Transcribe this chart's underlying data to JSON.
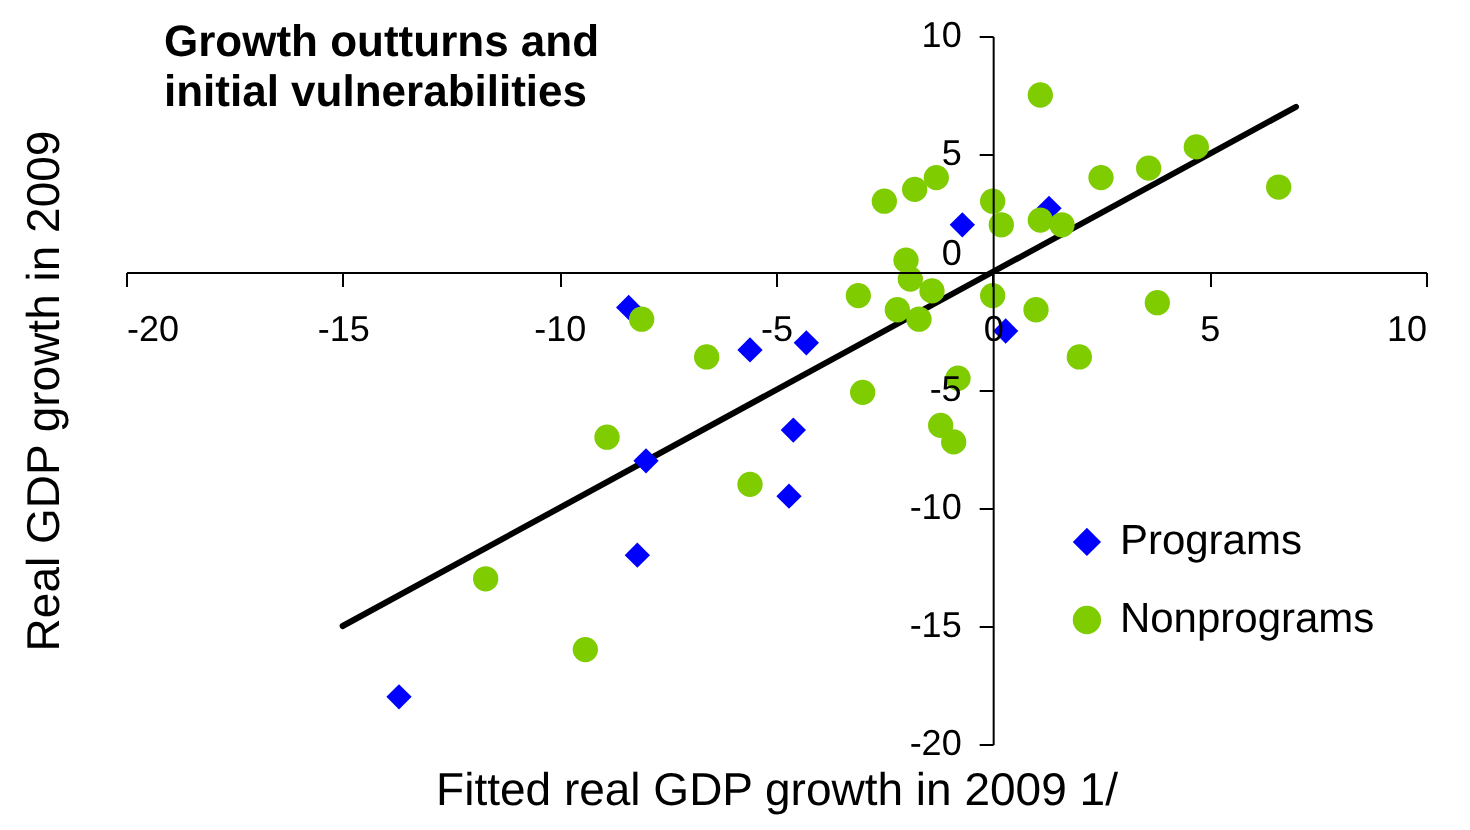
{
  "chart_data": {
    "type": "scatter",
    "title": "Growth outturns and initial vulnerabilities",
    "xlabel": "Fitted real GDP growth in 2009 1/",
    "ylabel": "Real GDP growth in 2009",
    "xlim": [
      -20,
      10
    ],
    "xticks": [
      -20,
      -15,
      -10,
      -5,
      0,
      5,
      10
    ],
    "ylim": [
      -20,
      10
    ],
    "yticks": [
      -20,
      -15,
      -10,
      -5,
      0,
      5,
      10
    ],
    "legend": "bottom right",
    "series": [
      {
        "type": "line",
        "color": "#000000",
        "x": [
          -15,
          7
        ],
        "values": [
          -15,
          7
        ]
      },
      {
        "name": "Programs",
        "color": "#0000ff",
        "marker": "diamond",
        "x": [
          -8.4,
          -5.6,
          -4.3,
          -4.6,
          -8.0,
          -4.7,
          -8.2,
          -13.7,
          -0.7,
          1.3,
          0.3
        ],
        "values": [
          -1.5,
          -3.3,
          -3.0,
          -6.7,
          -8.0,
          -9.5,
          -12.0,
          -18.0,
          2.0,
          2.7,
          -2.5
        ]
      },
      {
        "name": "Nonprograms",
        "color": "#7fcc00",
        "marker": "circle",
        "x": [
          1.1,
          4.7,
          3.6,
          2.5,
          6.6,
          -1.3,
          -1.8,
          -2.5,
          0.0,
          0.2,
          1.1,
          1.6,
          -2.0,
          -1.9,
          -1.4,
          -3.1,
          -2.2,
          -1.7,
          0.0,
          1.0,
          3.8,
          2.0,
          -3.0,
          -0.8,
          -1.2,
          -0.9,
          -8.1,
          -6.6,
          -8.9,
          -5.6,
          -11.7,
          -9.4
        ],
        "values": [
          7.5,
          5.3,
          4.4,
          4.0,
          3.6,
          4.0,
          3.5,
          3.0,
          3.0,
          2.0,
          2.2,
          2.0,
          0.5,
          -0.3,
          -0.8,
          -1.0,
          -1.6,
          -2.0,
          -1.0,
          -1.6,
          -1.3,
          -3.6,
          -5.1,
          -4.5,
          -6.5,
          -7.2,
          -2.0,
          -3.6,
          -7.0,
          -9.0,
          -13.0,
          -16.0
        ]
      }
    ]
  }
}
